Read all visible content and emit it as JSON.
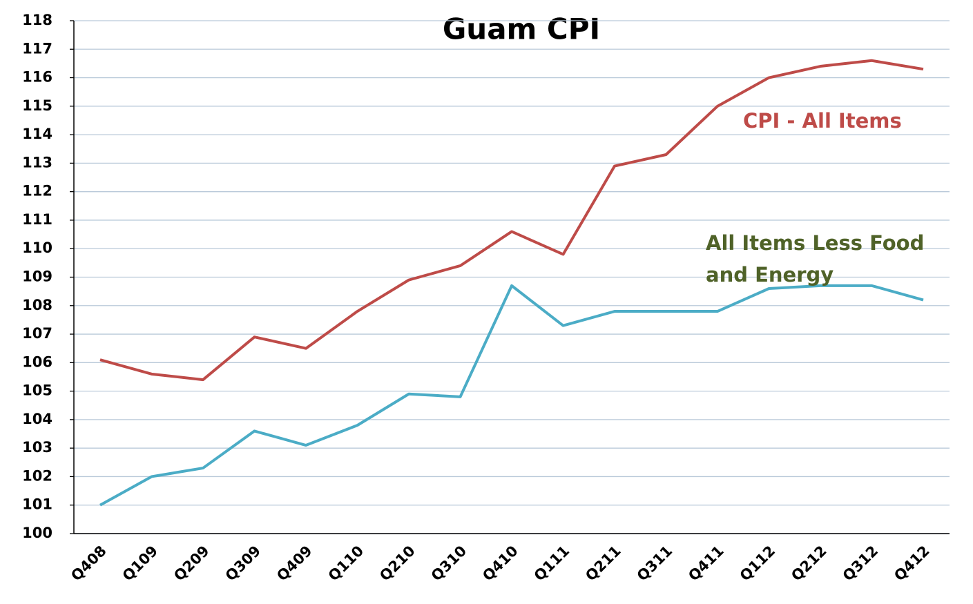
{
  "chart_data": {
    "type": "line",
    "title": "Guam CPI",
    "categories": [
      "Q408",
      "Q109",
      "Q209",
      "Q309",
      "Q409",
      "Q110",
      "Q210",
      "Q310",
      "Q410",
      "Q111",
      "Q211",
      "Q311",
      "Q411",
      "Q112",
      "Q212",
      "Q312",
      "Q412"
    ],
    "series": [
      {
        "name": "CPI - All Items",
        "color": "#be4b48",
        "values": [
          106.1,
          105.6,
          105.4,
          106.9,
          106.5,
          107.8,
          108.9,
          109.4,
          110.6,
          109.8,
          112.9,
          113.3,
          115.0,
          116.0,
          116.4,
          116.6,
          116.3
        ]
      },
      {
        "name": "All Items Less Food and Energy",
        "color": "#4bacc6",
        "label_color": "#4f6228",
        "values": [
          101.0,
          102.0,
          102.3,
          103.6,
          103.1,
          103.8,
          104.9,
          104.8,
          108.7,
          107.3,
          107.8,
          107.8,
          107.8,
          108.6,
          108.7,
          108.7,
          108.2
        ]
      }
    ],
    "ylim": [
      100,
      118
    ],
    "yticks": [
      100,
      101,
      102,
      103,
      104,
      105,
      106,
      107,
      108,
      109,
      110,
      111,
      112,
      113,
      114,
      115,
      116,
      117,
      118
    ],
    "grid": true
  }
}
